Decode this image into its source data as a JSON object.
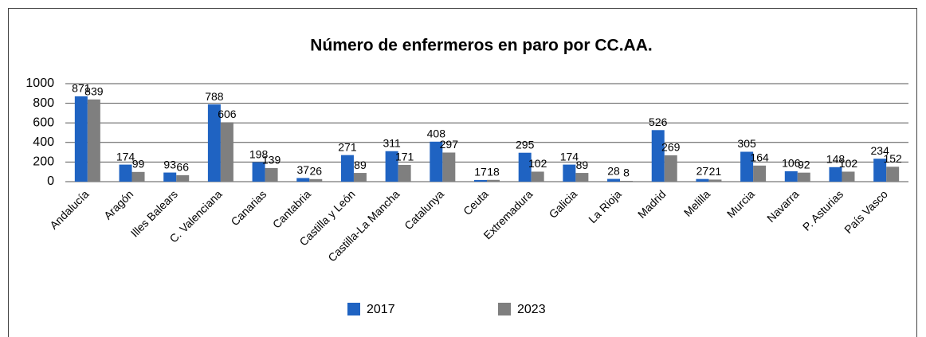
{
  "chart_data": {
    "type": "bar",
    "title": "Número de enfermeros en paro por CC.AA.",
    "categories": [
      "Andalucía",
      "Aragón",
      "Illes Balears",
      "C. Valenciana",
      "Canarias",
      "Cantabria",
      "Castilla y León",
      "Castilla-La Mancha",
      "Catalunya",
      "Ceuta",
      "Extremadura",
      "Galicia",
      "La Rioja",
      "Madrid",
      "Melilla",
      "Murcia",
      "Navarra",
      "P. Asturias",
      "País Vasco"
    ],
    "series": [
      {
        "name": "2017",
        "color": "#1f63c2",
        "values": [
          871,
          174,
          93,
          788,
          198,
          37,
          271,
          311,
          408,
          17,
          295,
          174,
          28,
          526,
          27,
          305,
          106,
          148,
          234
        ]
      },
      {
        "name": "2023",
        "color": "#7f7f7f",
        "values": [
          839,
          99,
          66,
          606,
          139,
          26,
          89,
          171,
          297,
          18,
          102,
          89,
          8,
          269,
          21,
          164,
          92,
          102,
          152
        ]
      }
    ],
    "ylim": [
      0,
      1000
    ],
    "yticks": [
      0,
      200,
      400,
      600,
      800,
      1000
    ],
    "grid": true,
    "legend": "bottom"
  }
}
